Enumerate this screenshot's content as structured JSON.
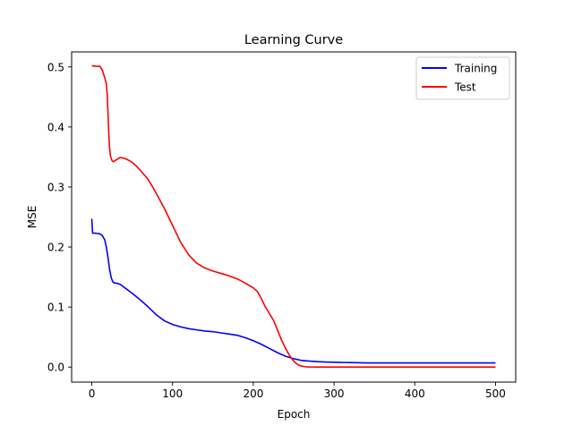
{
  "chart_data": {
    "type": "line",
    "title": "Learning Curve",
    "xlabel": "Epoch",
    "ylabel": "MSE",
    "xlim": [
      -25,
      525
    ],
    "ylim": [
      -0.025,
      0.525
    ],
    "xticks": [
      0,
      100,
      200,
      300,
      400,
      500
    ],
    "yticks": [
      0.0,
      0.1,
      0.2,
      0.3,
      0.4,
      0.5
    ],
    "xtick_labels": [
      "0",
      "100",
      "200",
      "300",
      "400",
      "500"
    ],
    "ytick_labels": [
      "0.0",
      "0.1",
      "0.2",
      "0.3",
      "0.4",
      "0.5"
    ],
    "grid": false,
    "legend_position": "top-right",
    "series": [
      {
        "name": "Training",
        "color": "#0000ff",
        "x": [
          0,
          1,
          5,
          10,
          13,
          16,
          18,
          20,
          22,
          24,
          26,
          28,
          30,
          35,
          40,
          50,
          60,
          70,
          80,
          90,
          100,
          110,
          120,
          130,
          140,
          150,
          160,
          170,
          180,
          190,
          200,
          210,
          220,
          230,
          240,
          250,
          260,
          270,
          280,
          290,
          300,
          320,
          340,
          360,
          400,
          450,
          500
        ],
        "y": [
          0.247,
          0.223,
          0.223,
          0.222,
          0.219,
          0.212,
          0.2,
          0.183,
          0.163,
          0.149,
          0.142,
          0.14,
          0.14,
          0.138,
          0.133,
          0.123,
          0.112,
          0.1,
          0.087,
          0.077,
          0.071,
          0.067,
          0.064,
          0.062,
          0.06,
          0.059,
          0.057,
          0.055,
          0.053,
          0.049,
          0.044,
          0.038,
          0.031,
          0.024,
          0.018,
          0.014,
          0.011,
          0.01,
          0.009,
          0.0085,
          0.008,
          0.0075,
          0.007,
          0.007,
          0.007,
          0.007,
          0.007
        ]
      },
      {
        "name": "Test",
        "color": "#ff0000",
        "x": [
          0,
          5,
          10,
          13,
          16,
          18,
          19,
          20,
          21,
          22,
          23,
          25,
          27,
          30,
          35,
          40,
          45,
          50,
          55,
          60,
          65,
          70,
          75,
          80,
          90,
          100,
          110,
          120,
          130,
          140,
          150,
          160,
          170,
          180,
          190,
          200,
          205,
          210,
          215,
          220,
          225,
          230,
          235,
          240,
          245,
          250,
          255,
          260,
          265,
          270,
          280,
          300,
          350,
          400,
          450,
          500
        ],
        "y": [
          0.502,
          0.501,
          0.501,
          0.495,
          0.482,
          0.472,
          0.455,
          0.425,
          0.39,
          0.365,
          0.352,
          0.344,
          0.342,
          0.345,
          0.349,
          0.348,
          0.345,
          0.341,
          0.335,
          0.328,
          0.32,
          0.312,
          0.301,
          0.289,
          0.264,
          0.236,
          0.208,
          0.187,
          0.173,
          0.165,
          0.16,
          0.156,
          0.152,
          0.147,
          0.14,
          0.132,
          0.126,
          0.114,
          0.1,
          0.089,
          0.078,
          0.062,
          0.045,
          0.031,
          0.019,
          0.01,
          0.004,
          0.0015,
          0.0005,
          0.0002,
          0.0001,
          0.0,
          0.0,
          0.0,
          0.0,
          0.0
        ]
      }
    ]
  }
}
